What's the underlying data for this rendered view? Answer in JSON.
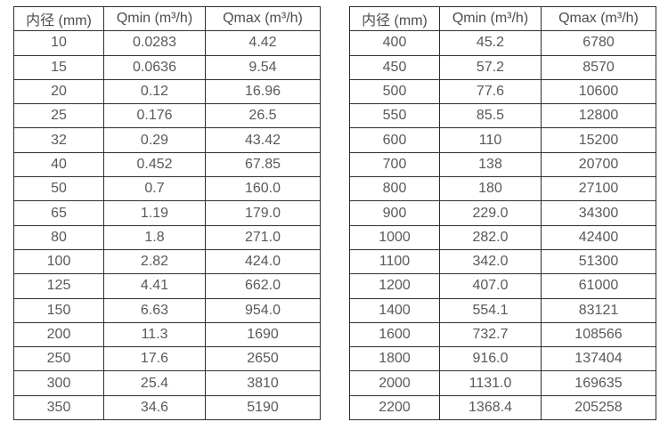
{
  "colors": {
    "background": "#ffffff",
    "border": "#2f2f2f",
    "text": "#595959"
  },
  "table_left": {
    "headers": [
      "内径 (mm)",
      "Qmin (m³/h)",
      "Qmax (m³/h)"
    ],
    "rows": [
      [
        "10",
        "0.0283",
        "4.42"
      ],
      [
        "15",
        "0.0636",
        "9.54"
      ],
      [
        "20",
        "0.12",
        "16.96"
      ],
      [
        "25",
        "0.176",
        "26.5"
      ],
      [
        "32",
        "0.29",
        "43.42"
      ],
      [
        "40",
        "0.452",
        "67.85"
      ],
      [
        "50",
        "0.7",
        "160.0"
      ],
      [
        "65",
        "1.19",
        "179.0"
      ],
      [
        "80",
        "1.8",
        "271.0"
      ],
      [
        "100",
        "2.82",
        "424.0"
      ],
      [
        "125",
        "4.41",
        "662.0"
      ],
      [
        "150",
        "6.63",
        "954.0"
      ],
      [
        "200",
        "11.3",
        "1690"
      ],
      [
        "250",
        "17.6",
        "2650"
      ],
      [
        "300",
        "25.4",
        "3810"
      ],
      [
        "350",
        "34.6",
        "5190"
      ]
    ]
  },
  "table_right": {
    "headers": [
      "内径 (mm)",
      "Qmin (m³/h)",
      "Qmax (m³/h)"
    ],
    "rows": [
      [
        "400",
        "45.2",
        "6780"
      ],
      [
        "450",
        "57.2",
        "8570"
      ],
      [
        "500",
        "77.6",
        "10600"
      ],
      [
        "550",
        "85.5",
        "12800"
      ],
      [
        "600",
        "110",
        "15200"
      ],
      [
        "700",
        "138",
        "20700"
      ],
      [
        "800",
        "180",
        "27100"
      ],
      [
        "900",
        "229.0",
        "34300"
      ],
      [
        "1000",
        "282.0",
        "42400"
      ],
      [
        "1100",
        "342.0",
        "51300"
      ],
      [
        "1200",
        "407.0",
        "61000"
      ],
      [
        "1400",
        "554.1",
        "83121"
      ],
      [
        "1600",
        "732.7",
        "108566"
      ],
      [
        "1800",
        "916.0",
        "137404"
      ],
      [
        "2000",
        "1131.0",
        "169635"
      ],
      [
        "2200",
        "1368.4",
        "205258"
      ]
    ]
  }
}
